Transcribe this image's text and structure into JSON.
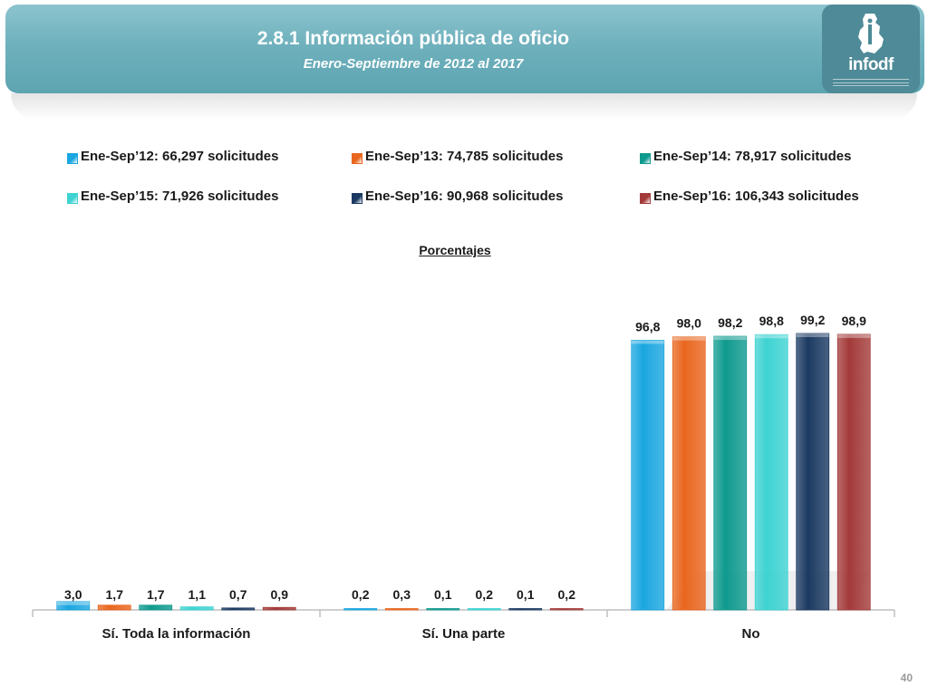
{
  "header": {
    "title": "2.8.1 Información pública de oficio",
    "subtitle": "Enero-Septiembre de 2012 al 2017",
    "logo_text": "infodf"
  },
  "legend": [
    {
      "label": "Ene-Sep’12: 66,297 solicitudes",
      "color": "#1aa6e0"
    },
    {
      "label": "Ene-Sep’13: 74,785 solicitudes",
      "color": "#e9661e"
    },
    {
      "label": "Ene-Sep’14: 78,917 solicitudes",
      "color": "#0f9a8f"
    },
    {
      "label": "Ene-Sep’15: 71,926 solicitudes",
      "color": "#3dd3d2"
    },
    {
      "label": "Ene-Sep’16: 90,968 solicitudes",
      "color": "#1b3a62"
    },
    {
      "label": "Ene-Sep’16: 106,343 solicitudes",
      "color": "#a33a3a"
    }
  ],
  "chart_data": {
    "type": "bar",
    "title": "",
    "subtitle": "Porcentajes",
    "categories": [
      "Sí. Toda la información",
      "Sí. Una parte",
      "No"
    ],
    "series": [
      {
        "name": "Ene-Sep’12: 66,297 solicitudes",
        "values": [
          3.0,
          0.2,
          96.8
        ],
        "labels": [
          "3,0",
          "0,2",
          "96,8"
        ],
        "color": "#1aa6e0"
      },
      {
        "name": "Ene-Sep’13: 74,785 solicitudes",
        "values": [
          1.7,
          0.3,
          98.0
        ],
        "labels": [
          "1,7",
          "0,3",
          "98,0"
        ],
        "color": "#e9661e"
      },
      {
        "name": "Ene-Sep’14: 78,917 solicitudes",
        "values": [
          1.7,
          0.1,
          98.2
        ],
        "labels": [
          "1,7",
          "0,1",
          "98,2"
        ],
        "color": "#0f9a8f"
      },
      {
        "name": "Ene-Sep’15: 71,926 solicitudes",
        "values": [
          1.1,
          0.2,
          98.8
        ],
        "labels": [
          "1,1",
          "0,2",
          "98,8"
        ],
        "color": "#3dd3d2"
      },
      {
        "name": "Ene-Sep’16: 90,968 solicitudes",
        "values": [
          0.7,
          0.1,
          99.2
        ],
        "labels": [
          "0,7",
          "0,1",
          "99,2"
        ],
        "color": "#1b3a62"
      },
      {
        "name": "Ene-Sep’16: 106,343 solicitudes",
        "values": [
          0.9,
          0.2,
          98.9
        ],
        "labels": [
          "0,9",
          "0,2",
          "98,9"
        ],
        "color": "#a33a3a"
      }
    ],
    "ylim": [
      0,
      100
    ],
    "xlabel": "",
    "ylabel": "",
    "grid": false,
    "legend_position": "top"
  },
  "footer": {
    "page_number": "40"
  }
}
